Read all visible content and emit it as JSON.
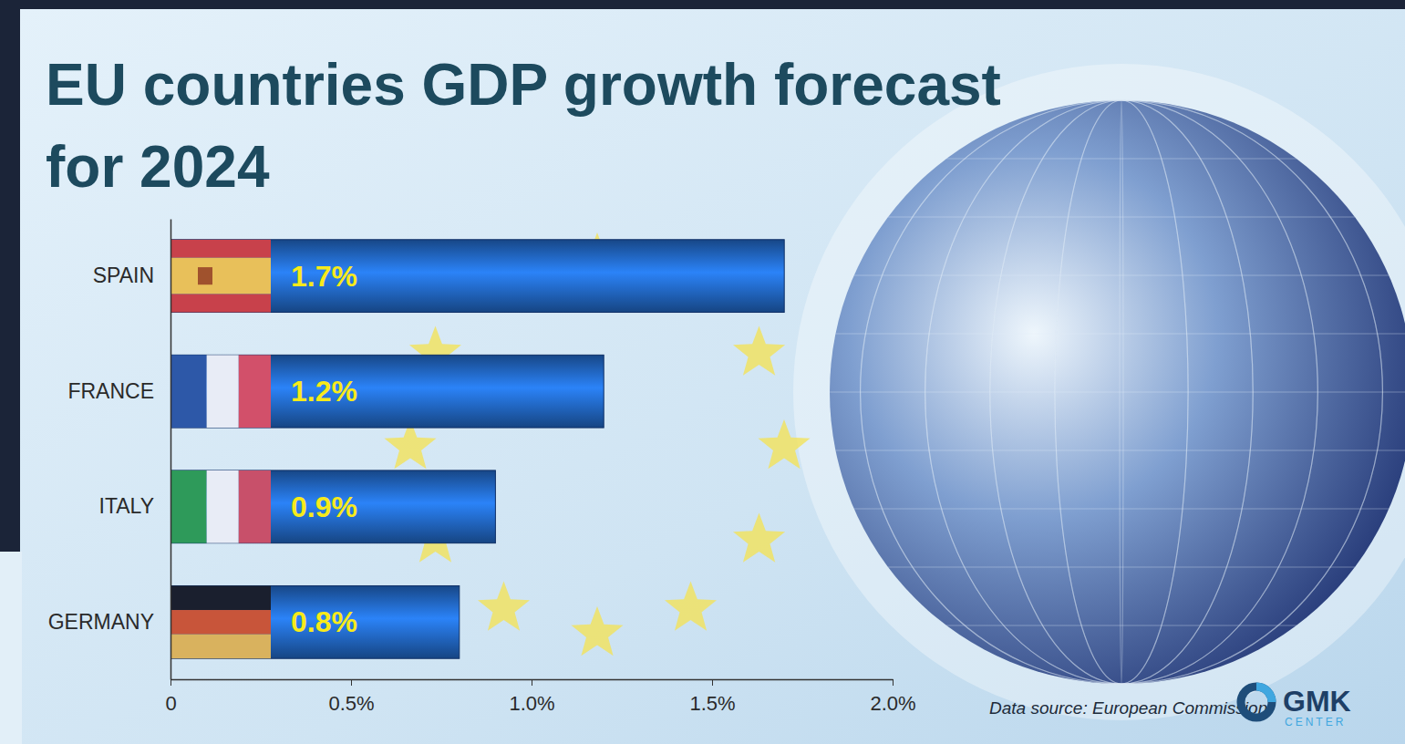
{
  "chart_data": {
    "type": "bar",
    "orientation": "horizontal",
    "title": "EU countries GDP growth forecast for 2024",
    "categories": [
      "SPAIN",
      "FRANCE",
      "ITALY",
      "GERMANY"
    ],
    "values": [
      1.7,
      1.2,
      0.9,
      0.8
    ],
    "value_labels": [
      "1.7%",
      "1.2%",
      "0.9%",
      "0.8%"
    ],
    "data_labels": true,
    "color": "#1f5fb4",
    "xlim": [
      0,
      2.0
    ],
    "xticks": [
      0,
      {
        "value": 0.5,
        "label": "0.5%"
      },
      {
        "value": 1.0,
        "label": "1.0%"
      },
      {
        "value": 1.5,
        "label": "1.5%"
      },
      {
        "value": 2.0,
        "label": "2.0%"
      }
    ],
    "grid": false,
    "annotations": [
      "Data source: European Commission",
      "GMK",
      "CENTER"
    ]
  }
}
